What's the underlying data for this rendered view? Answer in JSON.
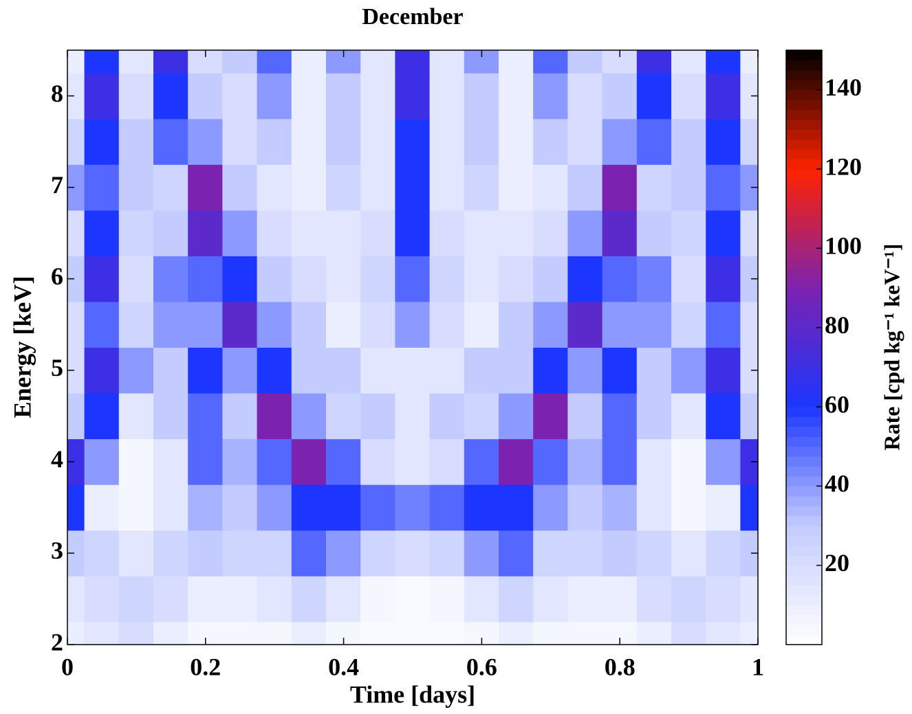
{
  "chart_data": {
    "type": "heatmap",
    "title": "December",
    "xlabel": "Time [days]",
    "ylabel": "Energy [keV]",
    "colorbar_label": "Rate [cpd kg⁻¹ keV⁻¹]",
    "x": [
      0,
      0.05,
      0.1,
      0.15,
      0.2,
      0.25,
      0.3,
      0.35,
      0.4,
      0.45,
      0.5,
      0.55,
      0.6,
      0.65,
      0.7,
      0.75,
      0.8,
      0.85,
      0.9,
      0.95,
      1
    ],
    "y": [
      2,
      2.5,
      3,
      3.5,
      4,
      4.5,
      5,
      5.5,
      6,
      6.5,
      7,
      7.5,
      8,
      8.5
    ],
    "z": [
      [
        10,
        15,
        20,
        10,
        5,
        5,
        5,
        10,
        5,
        3,
        3,
        3,
        5,
        10,
        5,
        5,
        5,
        10,
        20,
        15,
        10
      ],
      [
        15,
        20,
        25,
        20,
        10,
        10,
        15,
        25,
        15,
        5,
        3,
        5,
        15,
        25,
        15,
        10,
        10,
        20,
        25,
        20,
        15
      ],
      [
        30,
        25,
        15,
        25,
        30,
        25,
        25,
        50,
        40,
        25,
        20,
        25,
        40,
        50,
        25,
        25,
        30,
        25,
        15,
        25,
        30
      ],
      [
        60,
        10,
        5,
        15,
        35,
        30,
        40,
        60,
        60,
        50,
        45,
        50,
        60,
        60,
        40,
        30,
        35,
        15,
        5,
        10,
        60
      ],
      [
        70,
        40,
        5,
        15,
        50,
        35,
        50,
        90,
        50,
        20,
        15,
        20,
        50,
        90,
        50,
        35,
        50,
        15,
        5,
        40,
        70
      ],
      [
        30,
        60,
        15,
        30,
        50,
        30,
        90,
        40,
        25,
        30,
        15,
        30,
        25,
        40,
        90,
        30,
        50,
        30,
        15,
        60,
        30
      ],
      [
        20,
        70,
        40,
        30,
        60,
        40,
        60,
        30,
        30,
        15,
        15,
        15,
        30,
        30,
        60,
        40,
        60,
        30,
        40,
        70,
        20
      ],
      [
        20,
        50,
        25,
        40,
        40,
        80,
        40,
        30,
        10,
        20,
        40,
        20,
        10,
        30,
        40,
        80,
        40,
        40,
        25,
        50,
        20
      ],
      [
        30,
        70,
        20,
        45,
        50,
        60,
        30,
        20,
        15,
        25,
        50,
        25,
        15,
        20,
        30,
        60,
        50,
        45,
        20,
        70,
        30
      ],
      [
        20,
        60,
        25,
        30,
        80,
        40,
        20,
        15,
        15,
        20,
        60,
        20,
        15,
        15,
        20,
        40,
        80,
        30,
        25,
        60,
        20
      ],
      [
        40,
        50,
        30,
        25,
        90,
        30,
        15,
        10,
        25,
        15,
        60,
        15,
        25,
        10,
        15,
        30,
        90,
        25,
        30,
        50,
        40
      ],
      [
        25,
        60,
        30,
        50,
        40,
        20,
        30,
        10,
        30,
        15,
        60,
        15,
        30,
        10,
        30,
        20,
        40,
        50,
        30,
        60,
        25
      ],
      [
        15,
        70,
        20,
        60,
        30,
        20,
        40,
        10,
        30,
        15,
        70,
        15,
        30,
        10,
        40,
        20,
        30,
        60,
        20,
        70,
        15
      ],
      [
        10,
        60,
        15,
        70,
        20,
        30,
        50,
        10,
        40,
        15,
        70,
        15,
        40,
        10,
        50,
        30,
        20,
        70,
        15,
        60,
        10
      ]
    ],
    "xlim": [
      0,
      1
    ],
    "xticks": [
      0,
      0.2,
      0.4,
      0.6,
      0.8,
      1
    ],
    "ylim": [
      2,
      8.5
    ],
    "yticks": [
      2,
      3,
      4,
      5,
      6,
      7,
      8
    ],
    "zlim": [
      0,
      150
    ],
    "zticks": [
      20,
      40,
      60,
      80,
      100,
      120,
      140
    ],
    "colormap": [
      "#ffffff",
      "#c4ccff",
      "#1c36ff",
      "#7c22b0",
      "#ff2200",
      "#000000"
    ]
  }
}
